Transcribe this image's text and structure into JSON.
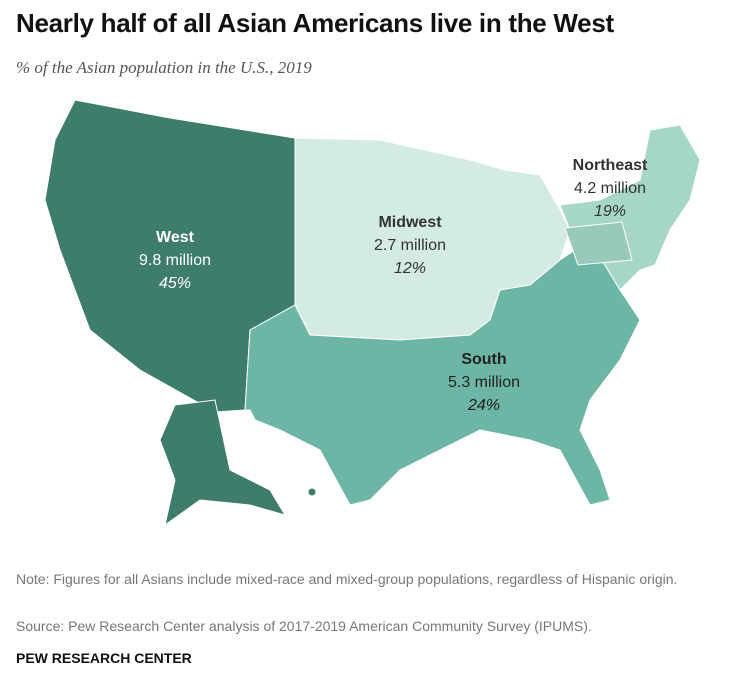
{
  "header": {
    "title": "Nearly half of all Asian Americans live in the West",
    "subtitle": "% of the Asian population in the U.S., 2019"
  },
  "regions": [
    {
      "name": "West",
      "population": "9.8 million",
      "share": "45%"
    },
    {
      "name": "Midwest",
      "population": "2.7 million",
      "share": "12%"
    },
    {
      "name": "Northeast",
      "population": "4.2 million",
      "share": "19%"
    },
    {
      "name": "South",
      "population": "5.3 million",
      "share": "24%"
    }
  ],
  "footer": {
    "note": "Note: Figures for all Asians include mixed-race and mixed-group populations, regardless of Hispanic origin.",
    "source": "Source: Pew Research Center analysis of 2017-2019 American Community Survey (IPUMS).",
    "brand": "PEW RESEARCH CENTER"
  }
}
